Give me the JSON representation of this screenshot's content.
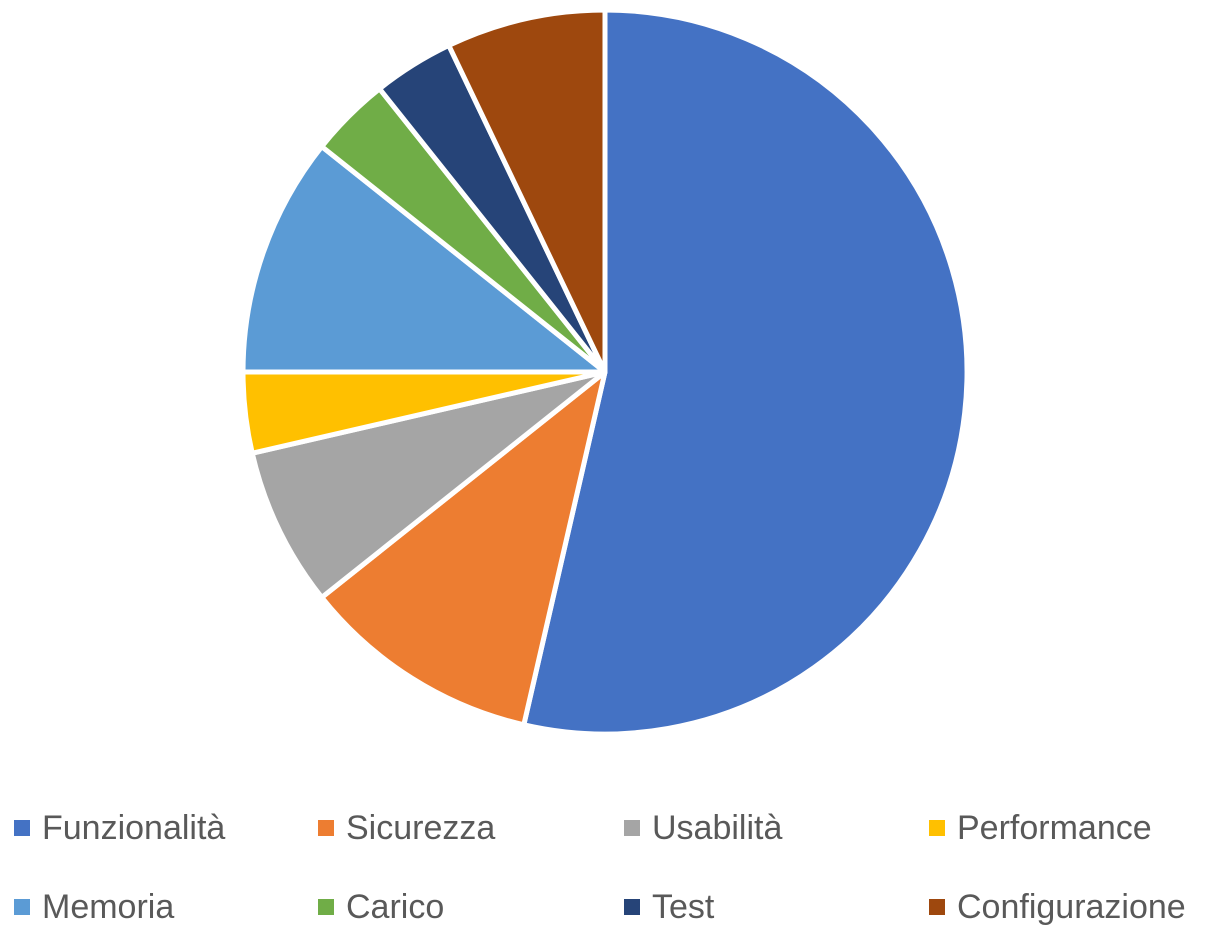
{
  "chart_data": {
    "type": "pie",
    "title": "",
    "legend_position": "bottom",
    "categories": [
      "Funzionalità",
      "Sicurezza",
      "Usabilità",
      "Performance",
      "Memoria",
      "Carico",
      "Test",
      "Configurazione"
    ],
    "values": [
      53.6,
      10.7,
      7.1,
      3.6,
      10.7,
      3.6,
      3.6,
      7.1
    ],
    "colors": [
      "#4472C4",
      "#ED7D31",
      "#A5A5A5",
      "#FFC000",
      "#5B9BD5",
      "#70AD47",
      "#264478",
      "#9E480E"
    ],
    "start_angle": "12 o'clock",
    "direction": "clockwise"
  },
  "legend": {
    "items": [
      {
        "label": "Funzionalità",
        "color": "#4472C4"
      },
      {
        "label": "Sicurezza",
        "color": "#ED7D31"
      },
      {
        "label": "Usabilità",
        "color": "#A5A5A5"
      },
      {
        "label": "Performance",
        "color": "#FFC000"
      },
      {
        "label": "Memoria",
        "color": "#5B9BD5"
      },
      {
        "label": "Carico",
        "color": "#70AD47"
      },
      {
        "label": "Test",
        "color": "#264478"
      },
      {
        "label": "Configurazione",
        "color": "#9E480E"
      }
    ]
  }
}
